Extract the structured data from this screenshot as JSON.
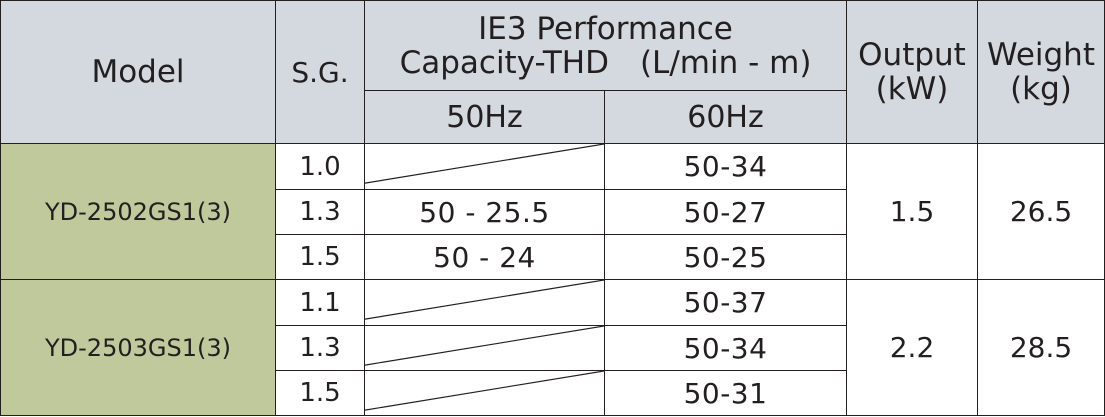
{
  "header": {
    "model": "Model",
    "sg": "S.G.",
    "performance_line1": "IE3  Performance",
    "performance_line2": "Capacity-THD　(L/min - m)",
    "hz50": "50Hz",
    "hz60": "60Hz",
    "output_line1": "Output",
    "output_line2": "(kW)",
    "weight_line1": "Weight",
    "weight_line2": "(kg)"
  },
  "groups": [
    {
      "model": "YD-2502GS1(3)",
      "output": "1.5",
      "weight": "26.5",
      "rows": [
        {
          "sg": "1.0",
          "hz50": "",
          "hz60": "50-34"
        },
        {
          "sg": "1.3",
          "hz50": "50 - 25.5",
          "hz60": "50-27"
        },
        {
          "sg": "1.5",
          "hz50": "50 - 24",
          "hz60": "50-25"
        }
      ]
    },
    {
      "model": "YD-2503GS1(3)",
      "output": "2.2",
      "weight": "28.5",
      "rows": [
        {
          "sg": "1.1",
          "hz50": "",
          "hz60": "50-37"
        },
        {
          "sg": "1.3",
          "hz50": "",
          "hz60": "50-34"
        },
        {
          "sg": "1.5",
          "hz50": "",
          "hz60": "50-31"
        }
      ]
    }
  ],
  "colors": {
    "header_bg": "#d4d9df",
    "model_bg": "#bfc99c",
    "border": "#231f20"
  }
}
